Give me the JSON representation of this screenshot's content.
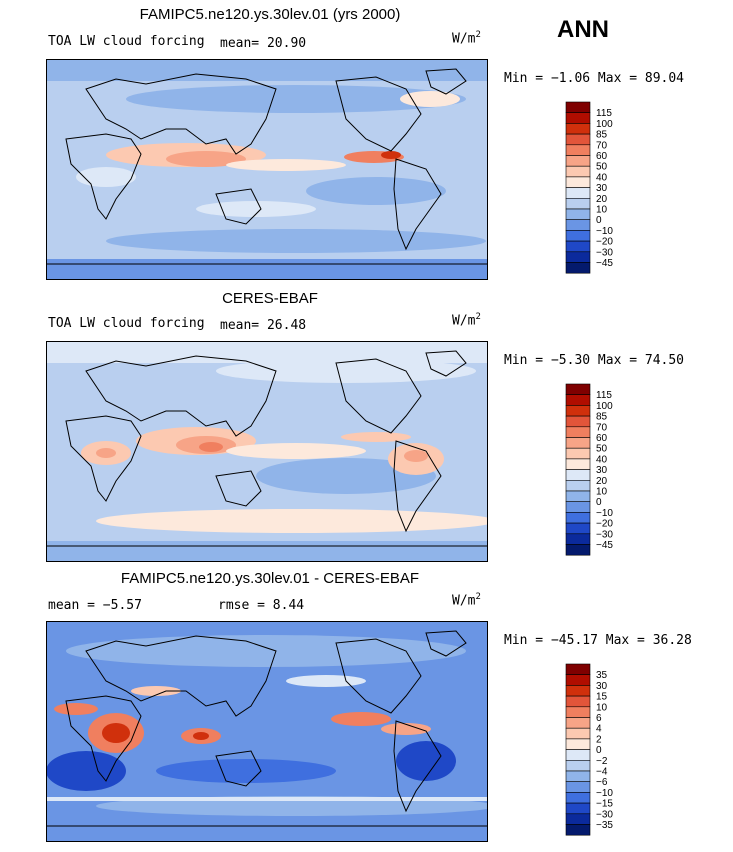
{
  "page": {
    "season": "ANN"
  },
  "chart_data": [
    {
      "type": "heatmap",
      "title": "FAMIPC5.ne120.ys.30lev.01 (yrs 2000)",
      "left_label": "TOA LW cloud forcing",
      "stat1": "mean=  20.90",
      "stat2": "",
      "units": "W/m",
      "units_exp": "2",
      "min_max": "Min =  −1.06 Max =  89.04",
      "colorbar": {
        "labels": [
          "115",
          "100",
          "85",
          "70",
          "60",
          "50",
          "40",
          "30",
          "20",
          "10",
          "0",
          "−10",
          "−20",
          "−30",
          "−45"
        ],
        "colors": [
          "#7f0000",
          "#b00d00",
          "#d0300c",
          "#e2553a",
          "#f07f5f",
          "#f7a487",
          "#fcc9b1",
          "#fde9dc",
          "#dde8f7",
          "#b9cfef",
          "#90b4e9",
          "#6a95e4",
          "#3f6fdf",
          "#1f48c7",
          "#0b2a9c",
          "#041a6d"
        ]
      }
    },
    {
      "type": "heatmap",
      "title": "CERES-EBAF",
      "left_label": "TOA LW cloud forcing",
      "stat1": "mean=  26.48",
      "stat2": "",
      "units": "W/m",
      "units_exp": "2",
      "min_max": "Min =  −5.30 Max =  74.50",
      "colorbar": {
        "labels": [
          "115",
          "100",
          "85",
          "70",
          "60",
          "50",
          "40",
          "30",
          "20",
          "10",
          "0",
          "−10",
          "−20",
          "−30",
          "−45"
        ],
        "colors": [
          "#7f0000",
          "#b00d00",
          "#d0300c",
          "#e2553a",
          "#f07f5f",
          "#f7a487",
          "#fcc9b1",
          "#fde9dc",
          "#dde8f7",
          "#b9cfef",
          "#90b4e9",
          "#6a95e4",
          "#3f6fdf",
          "#1f48c7",
          "#0b2a9c",
          "#041a6d"
        ]
      }
    },
    {
      "type": "heatmap",
      "title": "FAMIPC5.ne120.ys.30lev.01 - CERES-EBAF",
      "left_label": "",
      "stat1": "mean =  −5.57",
      "stat2": "rmse =   8.44",
      "units": "W/m",
      "units_exp": "2",
      "min_max": "Min = −45.17 Max =  36.28",
      "colorbar": {
        "labels": [
          "35",
          "30",
          "15",
          "10",
          "6",
          "4",
          "2",
          "0",
          "−2",
          "−4",
          "−6",
          "−10",
          "−15",
          "−30",
          "−35"
        ],
        "colors": [
          "#7f0000",
          "#b00d00",
          "#d0300c",
          "#e2553a",
          "#f07f5f",
          "#f7a487",
          "#fcc9b1",
          "#fde9dc",
          "#dde8f7",
          "#b9cfef",
          "#90b4e9",
          "#6a95e4",
          "#3f6fdf",
          "#1f48c7",
          "#0b2a9c",
          "#041a6d"
        ]
      }
    }
  ]
}
